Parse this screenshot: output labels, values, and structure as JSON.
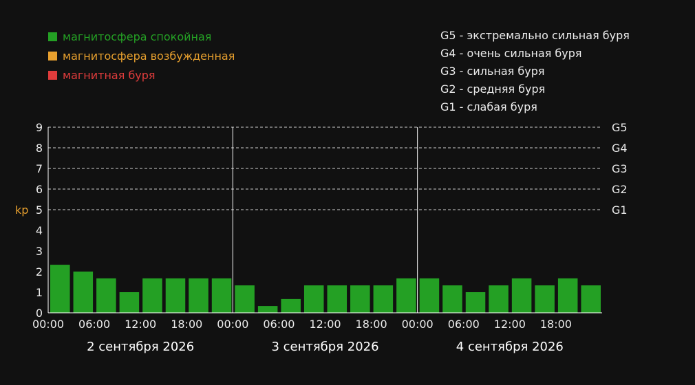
{
  "legend": [
    {
      "label": "магнитосфера спокойная",
      "color": "#24a024"
    },
    {
      "label": "магнитосфера возбужденная",
      "color": "#e8a02e"
    },
    {
      "label": "магнитная буря",
      "color": "#e03c3c"
    }
  ],
  "storm_scale": [
    {
      "level": "G5",
      "text": "G5 - экстремально сильная буря"
    },
    {
      "level": "G4",
      "text": "G4 - очень сильная буря"
    },
    {
      "level": "G3",
      "text": "G3 - сильная буря"
    },
    {
      "level": "G2",
      "text": "G2 - средняя буря"
    },
    {
      "level": "G1",
      "text": "G1 - слабая буря"
    }
  ],
  "chart_data": {
    "type": "bar",
    "ylabel": "kp",
    "ylim": [
      0,
      9
    ],
    "yticks": [
      0,
      1,
      2,
      3,
      4,
      5,
      6,
      7,
      8,
      9
    ],
    "right_axis": [
      {
        "value": 9,
        "label": "G5"
      },
      {
        "value": 8,
        "label": "G4"
      },
      {
        "value": 7,
        "label": "G3"
      },
      {
        "value": 6,
        "label": "G2"
      },
      {
        "value": 5,
        "label": "G1"
      }
    ],
    "grid": "dashed horizontal lines at kp 5-9",
    "days": [
      "2 сентября 2026",
      "3 сентября 2026",
      "4 сентября 2026"
    ],
    "time_ticks": [
      "00:00",
      "06:00",
      "12:00",
      "18:00"
    ],
    "bars_per_day": 8,
    "values": [
      2.33,
      2.0,
      1.67,
      1.0,
      1.67,
      1.67,
      1.67,
      1.67,
      1.33,
      0.33,
      0.67,
      1.33,
      1.33,
      1.33,
      1.33,
      1.67,
      1.67,
      1.33,
      1.0,
      1.33,
      1.67,
      1.33,
      1.67,
      1.33
    ],
    "bar_color": "#24a024"
  }
}
